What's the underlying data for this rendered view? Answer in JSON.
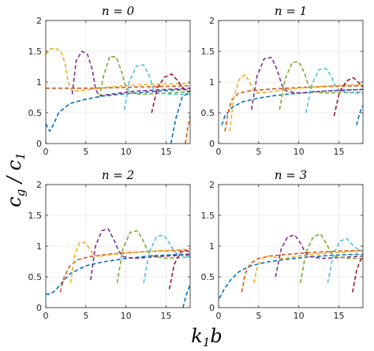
{
  "figure": {
    "ylabel": "c_g / c_1",
    "xlabel": "k_1 b"
  },
  "chart_data": [
    {
      "type": "line",
      "title": "n = 0",
      "xlim": [
        0,
        18
      ],
      "ylim": [
        0,
        2
      ],
      "xticks": [
        0,
        5,
        10,
        15
      ],
      "yticks": [
        0,
        0.5,
        1,
        1.5,
        2
      ],
      "xticklabels": [
        "0",
        "5",
        "10",
        "15"
      ],
      "yticklabels": [
        "0",
        "0.5",
        "1",
        "1.5",
        "2"
      ],
      "grid": true,
      "series": [
        {
          "color": "#0072BD",
          "x": [
            0,
            0.5,
            1,
            1.6,
            3,
            5,
            7,
            10,
            13,
            16,
            18
          ],
          "y": [
            0.32,
            0.2,
            0.32,
            0.5,
            0.65,
            0.72,
            0.77,
            0.81,
            0.84,
            0.87,
            0.88
          ]
        },
        {
          "color": "#D95319",
          "x": [
            0,
            3,
            6,
            9,
            12,
            15,
            18
          ],
          "y": [
            0.9,
            0.9,
            0.9,
            0.91,
            0.92,
            0.93,
            0.94
          ]
        },
        {
          "color": "#EDB120",
          "x": [
            0,
            0.6,
            1.2,
            1.9,
            2.4,
            2.8,
            3.3,
            5,
            8,
            12,
            16,
            18
          ],
          "y": [
            1.45,
            1.54,
            1.55,
            1.5,
            1.3,
            1.0,
            0.85,
            0.87,
            0.92,
            0.96,
            0.97,
            0.98
          ]
        },
        {
          "color": "#7E2F8E",
          "x": [
            3.3,
            3.8,
            4.5,
            5.2,
            5.8,
            6.2,
            6.6,
            8,
            11,
            15,
            18
          ],
          "y": [
            0.8,
            1.35,
            1.5,
            1.45,
            1.2,
            0.9,
            0.78,
            0.8,
            0.85,
            0.88,
            0.9
          ]
        },
        {
          "color": "#77AC30",
          "x": [
            6.7,
            7.2,
            8,
            8.8,
            9.5,
            10,
            10.5,
            12,
            15,
            18
          ],
          "y": [
            0.75,
            1.1,
            1.42,
            1.4,
            1.15,
            0.9,
            0.82,
            0.8,
            0.82,
            0.84
          ]
        },
        {
          "color": "#4DBEEE",
          "x": [
            9.8,
            10.4,
            11.3,
            12.2,
            12.9,
            13.4,
            14,
            16,
            18
          ],
          "y": [
            0.55,
            1.0,
            1.26,
            1.28,
            1.1,
            0.9,
            0.82,
            0.8,
            0.8
          ]
        },
        {
          "color": "#A2142F",
          "x": [
            13.2,
            13.9,
            14.8,
            15.7,
            16.4,
            17,
            17.6,
            18
          ],
          "y": [
            0.5,
            0.9,
            1.08,
            1.13,
            1.03,
            0.92,
            0.85,
            0.85
          ]
        },
        {
          "color": "#0072BD",
          "x": [
            15.6,
            16.2,
            17,
            18
          ],
          "y": [
            0.0,
            0.4,
            0.75,
            0.85
          ]
        },
        {
          "color": "#D95319",
          "x": [
            17.4,
            17.7,
            18
          ],
          "y": [
            0.0,
            0.25,
            0.45
          ]
        }
      ]
    },
    {
      "type": "line",
      "title": "n = 1",
      "xlim": [
        0,
        18
      ],
      "ylim": [
        0,
        2
      ],
      "xticks": [
        0,
        5,
        10,
        15
      ],
      "yticks": [
        0,
        0.5,
        1,
        1.5,
        2
      ],
      "xticklabels": [
        "0",
        "5",
        "10",
        "15"
      ],
      "yticklabels": [
        "0",
        "0.5",
        "1",
        "1.5",
        "2"
      ],
      "grid": true,
      "series": [
        {
          "color": "#0072BD",
          "x": [
            0.4,
            0.8,
            1.6,
            3,
            5,
            7,
            10,
            13,
            16,
            18
          ],
          "y": [
            0.3,
            0.45,
            0.58,
            0.68,
            0.74,
            0.78,
            0.82,
            0.85,
            0.87,
            0.88
          ]
        },
        {
          "color": "#D95319",
          "x": [
            0.8,
            1.1,
            1.6,
            2.5,
            4,
            7,
            10,
            14,
            18
          ],
          "y": [
            0.2,
            0.45,
            0.7,
            0.82,
            0.86,
            0.89,
            0.91,
            0.93,
            0.94
          ]
        },
        {
          "color": "#EDB120",
          "x": [
            1.4,
            1.9,
            2.6,
            3.3,
            3.9,
            4.4,
            5,
            7,
            10,
            14,
            18
          ],
          "y": [
            0.2,
            0.75,
            1.05,
            1.12,
            1.0,
            0.85,
            0.82,
            0.85,
            0.9,
            0.94,
            0.96
          ]
        },
        {
          "color": "#7E2F8E",
          "x": [
            4.1,
            4.8,
            5.7,
            6.6,
            7.3,
            7.9,
            8.5,
            10,
            13,
            16,
            18
          ],
          "y": [
            0.55,
            1.1,
            1.38,
            1.4,
            1.2,
            0.95,
            0.85,
            0.82,
            0.85,
            0.87,
            0.88
          ]
        },
        {
          "color": "#77AC30",
          "x": [
            7.6,
            8.3,
            9.2,
            10,
            10.7,
            11.2,
            11.8,
            13,
            16,
            18
          ],
          "y": [
            0.55,
            1.05,
            1.32,
            1.33,
            1.15,
            0.95,
            0.85,
            0.82,
            0.83,
            0.84
          ]
        },
        {
          "color": "#4DBEEE",
          "x": [
            10.9,
            11.6,
            12.5,
            13.4,
            14.1,
            14.6,
            15.2,
            17,
            18
          ],
          "y": [
            0.5,
            0.95,
            1.2,
            1.22,
            1.08,
            0.92,
            0.85,
            0.82,
            0.82
          ]
        },
        {
          "color": "#A2142F",
          "x": [
            14.4,
            15.1,
            16,
            16.8,
            17.4,
            18
          ],
          "y": [
            0.45,
            0.85,
            1.02,
            1.07,
            1.0,
            0.92
          ]
        },
        {
          "color": "#0072BD",
          "x": [
            17.2,
            17.6,
            18
          ],
          "y": [
            0.3,
            0.5,
            0.62
          ]
        }
      ]
    },
    {
      "type": "line",
      "title": "n = 2",
      "xlim": [
        0,
        18
      ],
      "ylim": [
        0,
        2
      ],
      "xticks": [
        0,
        5,
        10,
        15
      ],
      "yticks": [
        0,
        0.5,
        1,
        1.5,
        2
      ],
      "xticklabels": [
        "0",
        "5",
        "10",
        "15"
      ],
      "yticklabels": [
        "0",
        "0.5",
        "1",
        "1.5",
        "2"
      ],
      "grid": true,
      "series": [
        {
          "color": "#0072BD",
          "x": [
            0,
            0.6,
            1.2,
            2,
            3,
            5,
            7,
            10,
            13,
            16,
            18
          ],
          "y": [
            0.22,
            0.22,
            0.28,
            0.4,
            0.55,
            0.68,
            0.74,
            0.8,
            0.84,
            0.86,
            0.87
          ]
        },
        {
          "color": "#D95319",
          "x": [
            1.8,
            2.3,
            3,
            4,
            5.5,
            8,
            11,
            14,
            18
          ],
          "y": [
            0.25,
            0.5,
            0.68,
            0.78,
            0.83,
            0.87,
            0.9,
            0.92,
            0.93
          ]
        },
        {
          "color": "#EDB120",
          "x": [
            3.1,
            3.6,
            4.2,
            4.9,
            5.5,
            6,
            6.6,
            8,
            11,
            15,
            18
          ],
          "y": [
            0.4,
            0.85,
            1.05,
            1.06,
            0.95,
            0.85,
            0.83,
            0.86,
            0.9,
            0.93,
            0.95
          ]
        },
        {
          "color": "#7E2F8E",
          "x": [
            5.6,
            6.2,
            7,
            7.8,
            8.5,
            9.1,
            9.7,
            11,
            14,
            18
          ],
          "y": [
            0.45,
            1.0,
            1.25,
            1.28,
            1.1,
            0.92,
            0.83,
            0.8,
            0.83,
            0.86
          ]
        },
        {
          "color": "#77AC30",
          "x": [
            8.9,
            9.6,
            10.5,
            11.4,
            12.1,
            12.7,
            13.3,
            15,
            18
          ],
          "y": [
            0.4,
            0.95,
            1.22,
            1.25,
            1.1,
            0.92,
            0.84,
            0.8,
            0.82
          ]
        },
        {
          "color": "#4DBEEE",
          "x": [
            12.2,
            12.9,
            13.8,
            14.7,
            15.4,
            16,
            16.6,
            18
          ],
          "y": [
            0.4,
            0.9,
            1.15,
            1.18,
            1.05,
            0.92,
            0.85,
            0.83
          ]
        },
        {
          "color": "#A2142F",
          "x": [
            15.4,
            16,
            16.8,
            17.5,
            18
          ],
          "y": [
            0.3,
            0.7,
            0.9,
            0.93,
            0.9
          ]
        },
        {
          "color": "#0072BD",
          "x": [
            17.1,
            17.5,
            18
          ],
          "y": [
            0.0,
            0.2,
            0.38
          ]
        }
      ]
    },
    {
      "type": "line",
      "title": "n = 3",
      "xlim": [
        0,
        18
      ],
      "ylim": [
        0,
        2
      ],
      "xticks": [
        0,
        5,
        10,
        15
      ],
      "yticks": [
        0,
        0.5,
        1,
        1.5,
        2
      ],
      "xticklabels": [
        "0",
        "5",
        "10",
        "15"
      ],
      "yticklabels": [
        "0",
        "0.5",
        "1",
        "1.5",
        "2"
      ],
      "grid": true,
      "series": [
        {
          "color": "#0072BD",
          "x": [
            0.1,
            0.7,
            1.5,
            2.5,
            4,
            6,
            8,
            11,
            14,
            18
          ],
          "y": [
            0.15,
            0.3,
            0.45,
            0.58,
            0.68,
            0.74,
            0.78,
            0.82,
            0.85,
            0.87
          ]
        },
        {
          "color": "#D95319",
          "x": [
            2.9,
            3.3,
            4,
            5,
            6.5,
            9,
            12,
            15,
            18
          ],
          "y": [
            0.25,
            0.55,
            0.72,
            0.8,
            0.84,
            0.87,
            0.9,
            0.92,
            0.93
          ]
        },
        {
          "color": "#EDB120",
          "x": [
            4.4,
            4.9,
            5.6,
            6.3,
            7,
            7.6,
            8.3,
            10,
            13,
            18
          ],
          "y": [
            0.4,
            0.7,
            0.82,
            0.84,
            0.82,
            0.8,
            0.8,
            0.84,
            0.88,
            0.92
          ]
        },
        {
          "color": "#7E2F8E",
          "x": [
            7.1,
            7.8,
            8.6,
            9.5,
            10.2,
            10.8,
            11.4,
            13,
            16,
            18
          ],
          "y": [
            0.5,
            0.95,
            1.15,
            1.18,
            1.05,
            0.9,
            0.83,
            0.8,
            0.82,
            0.84
          ]
        },
        {
          "color": "#77AC30",
          "x": [
            10.2,
            10.9,
            11.8,
            12.7,
            13.4,
            14,
            14.6,
            16,
            18
          ],
          "y": [
            0.4,
            0.9,
            1.15,
            1.2,
            1.05,
            0.9,
            0.83,
            0.8,
            0.8
          ]
        },
        {
          "color": "#4DBEEE",
          "x": [
            13.6,
            14.3,
            15.1,
            16,
            16.7,
            17.3,
            18
          ],
          "y": [
            0.4,
            0.85,
            1.08,
            1.12,
            1.02,
            0.95,
            0.92
          ]
        },
        {
          "color": "#A2142F",
          "x": [
            16.7,
            17.2,
            17.6,
            18
          ],
          "y": [
            0.25,
            0.6,
            0.75,
            0.82
          ]
        }
      ]
    }
  ]
}
